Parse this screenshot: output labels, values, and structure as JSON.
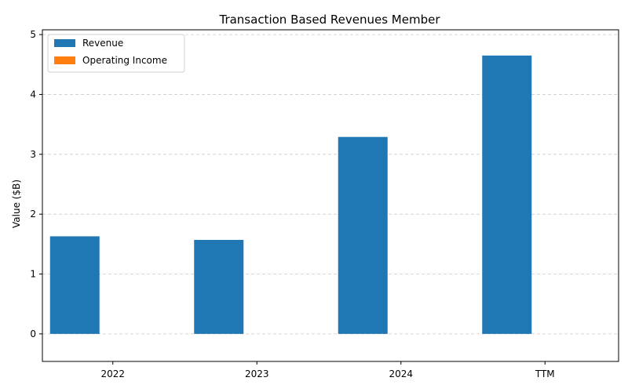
{
  "chart_data": {
    "type": "bar",
    "title": "Transaction Based Revenues Member",
    "xlabel": "",
    "ylabel": "Value ($B)",
    "categories": [
      "2022",
      "2023",
      "2024",
      "TTM"
    ],
    "series": [
      {
        "name": "Revenue",
        "values": [
          1.63,
          1.57,
          3.29,
          4.65
        ],
        "color": "#1f77b4"
      },
      {
        "name": "Operating Income",
        "values": [
          0,
          0,
          0,
          0
        ],
        "color": "#ff7f0e"
      }
    ],
    "ylim": [
      -0.46,
      5.08
    ],
    "yticks": [
      0,
      1,
      2,
      3,
      4,
      5
    ],
    "grid": true,
    "legend_position": "top-left"
  }
}
